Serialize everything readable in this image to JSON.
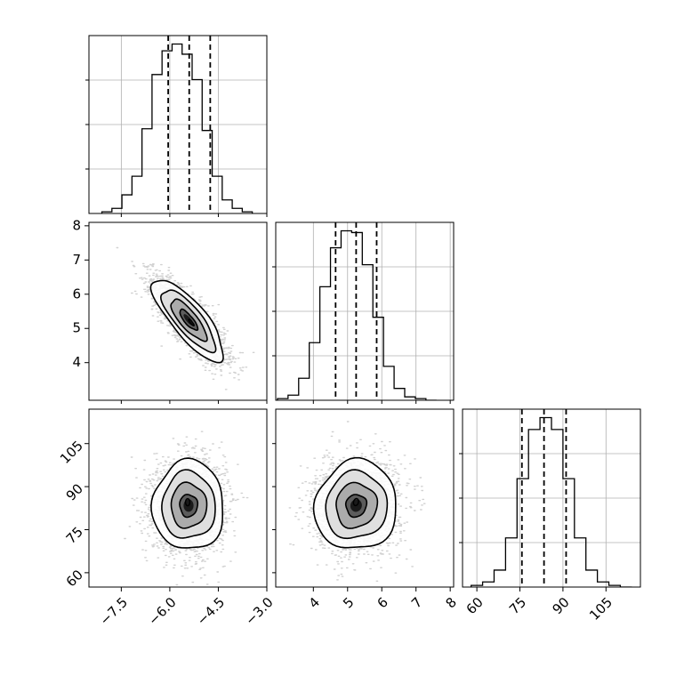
{
  "chart_data": {
    "type": "corner",
    "parameters": [
      {
        "ticks": [
          -7.5,
          -6.0,
          -4.5,
          -3.0
        ],
        "tick_labels": [
          "−7.5",
          "−6.0",
          "−4.5",
          "−3.0"
        ],
        "range": [
          -8.5,
          -3.0
        ]
      },
      {
        "ticks": [
          4,
          5,
          6,
          7,
          8
        ],
        "tick_labels": [
          "4",
          "5",
          "6",
          "7",
          "8"
        ],
        "range": [
          2.9,
          8.1
        ]
      },
      {
        "ticks": [
          60,
          75,
          90,
          105
        ],
        "tick_labels": [
          "60",
          "75",
          "90",
          "105"
        ],
        "range": [
          55,
          117
        ]
      }
    ],
    "grid": true,
    "quantile_lines": "dashed",
    "histograms": [
      {
        "parameter": 0,
        "bin_edges": [
          -8.1,
          -7.79,
          -7.48,
          -7.17,
          -6.86,
          -6.55,
          -6.24,
          -5.93,
          -5.62,
          -5.31,
          -5.0,
          -4.69,
          -4.38,
          -4.07,
          -3.76,
          -3.45
        ],
        "counts": [
          1,
          3,
          11,
          22,
          50,
          82,
          96,
          100,
          94,
          79,
          49,
          22,
          8,
          3,
          1
        ],
        "quantiles": [
          -6.05,
          -5.4,
          -4.75
        ]
      },
      {
        "parameter": 1,
        "bin_edges": [
          2.95,
          3.26,
          3.57,
          3.88,
          4.19,
          4.5,
          4.81,
          5.12,
          5.43,
          5.74,
          6.05,
          6.36,
          6.67,
          6.98,
          7.29,
          7.6
        ],
        "counts": [
          1,
          3,
          13,
          34,
          67,
          90,
          100,
          99,
          80,
          49,
          20,
          7,
          2,
          1,
          0
        ],
        "quantiles": [
          4.65,
          5.25,
          5.85
        ]
      },
      {
        "parameter": 2,
        "bin_edges": [
          58,
          62,
          66,
          70,
          74,
          78,
          82,
          86,
          90,
          94,
          98,
          102,
          106,
          110,
          114
        ],
        "counts": [
          1,
          3,
          10,
          29,
          64,
          93,
          100,
          93,
          64,
          29,
          10,
          3,
          1,
          0
        ],
        "quantiles": [
          75.7,
          83.4,
          91.1
        ]
      }
    ],
    "joint_distributions": [
      {
        "x_parameter": 0,
        "y_parameter": 1,
        "center": [
          -5.42,
          5.25
        ],
        "std": [
          0.55,
          0.6
        ],
        "correlation": -0.8
      },
      {
        "x_parameter": 0,
        "y_parameter": 2,
        "center": [
          -5.42,
          83.4
        ],
        "std": [
          0.55,
          7.8
        ],
        "correlation": 0.0
      },
      {
        "x_parameter": 1,
        "y_parameter": 2,
        "center": [
          5.25,
          83.4
        ],
        "std": [
          0.6,
          7.8
        ],
        "correlation": 0.05
      }
    ]
  }
}
